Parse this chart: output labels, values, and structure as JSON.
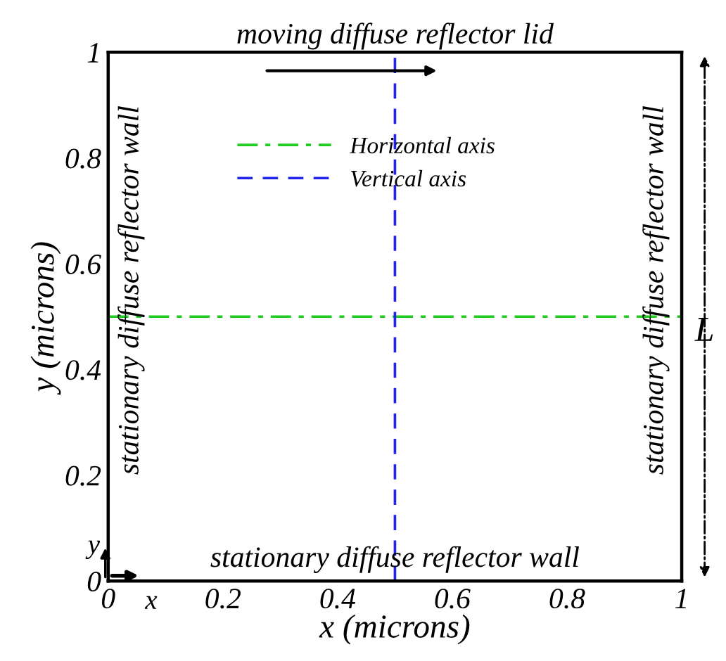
{
  "chart_data": {
    "type": "line",
    "xlabel": "x (microns)",
    "ylabel": "y (microns)",
    "xlim": [
      0,
      1
    ],
    "ylim": [
      0,
      1
    ],
    "xticks": [
      0,
      0.2,
      0.4,
      0.6,
      0.8,
      1
    ],
    "yticks": [
      0,
      0.2,
      0.4,
      0.6,
      0.8,
      1
    ],
    "grid": false,
    "legend": "top",
    "marker": "none",
    "series": [
      {
        "name": "Horizontal axis",
        "color": "#22cc22",
        "line_style": "dashdot",
        "x": [
          0,
          1
        ],
        "values": [
          0.5,
          0.5
        ]
      },
      {
        "name": "Vertical axis",
        "color": "#2222ee",
        "line_style": "dashed",
        "x": [
          0.5,
          0.5
        ],
        "values": [
          0,
          1
        ]
      }
    ],
    "annotations": [
      "moving diffuse reflector lid",
      "stationary diffuse reflector wall",
      "stationary diffuse reflector wall",
      "stationary diffuse reflector wall",
      "L",
      "x",
      "y"
    ]
  }
}
